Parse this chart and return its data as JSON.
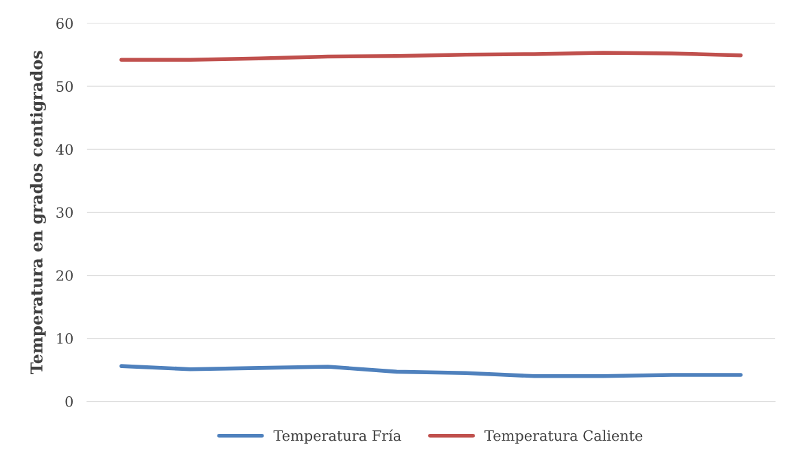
{
  "chart_data": {
    "type": "line",
    "ylabel": "Temperatura en grados centigrados",
    "categories": [
      null,
      null,
      null,
      null,
      null,
      null,
      null,
      null,
      null,
      null
    ],
    "series": [
      {
        "name": "Temperatura Fría",
        "color": "#4f81bd",
        "values": [
          5.6,
          5.1,
          5.3,
          5.5,
          4.7,
          4.5,
          4.0,
          4.0,
          4.2,
          4.2
        ]
      },
      {
        "name": "Temperatura Caliente",
        "color": "#c0504d",
        "values": [
          54.2,
          54.2,
          54.4,
          54.7,
          54.8,
          55.0,
          55.1,
          55.3,
          55.2,
          54.9
        ]
      }
    ],
    "ylim": [
      0,
      60
    ],
    "yticks": [
      0,
      10,
      20,
      30,
      40,
      50,
      60
    ],
    "grid": "y",
    "legend": "bottom",
    "marker": "none",
    "line_style": "solid"
  }
}
